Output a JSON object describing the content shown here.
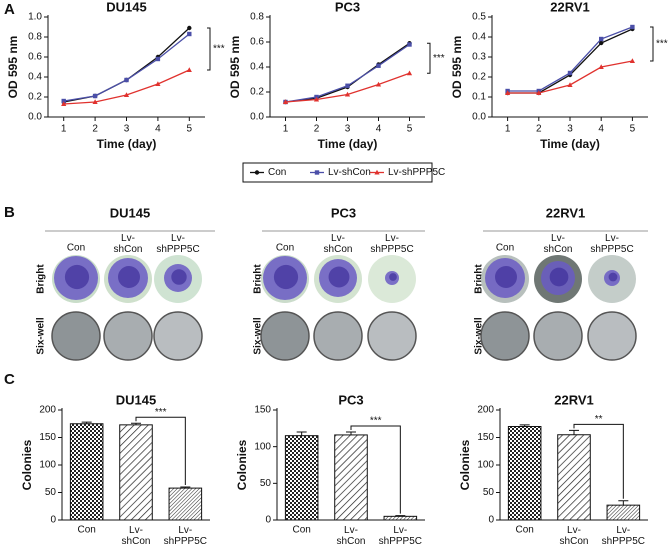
{
  "panel_labels": [
    "A",
    "B",
    "C"
  ],
  "legend_names_from": "chart_data.0.series",
  "chart_data": [
    {
      "type": "line",
      "title": "DU145",
      "xlabel": "Time (day)",
      "ylabel": "OD 595 nm",
      "x": [
        1,
        2,
        3,
        4,
        5
      ],
      "xlim": [
        0.5,
        5.5
      ],
      "xticks": [
        1,
        2,
        3,
        4,
        5
      ],
      "ylim": [
        0,
        1.0
      ],
      "yticks": [
        {
          "value": 0,
          "label": "0.0"
        },
        {
          "value": 0.2,
          "label": "0.2"
        },
        {
          "value": 0.4,
          "label": "0.4"
        },
        {
          "value": 0.6,
          "label": "0.6"
        },
        {
          "value": 0.8,
          "label": "0.8"
        },
        {
          "value": 1.0,
          "label": "1.0"
        }
      ],
      "annotation": "***",
      "series": [
        {
          "name": "Con",
          "color": "#111111",
          "values": [
            0.15,
            0.21,
            0.37,
            0.6,
            0.89
          ]
        },
        {
          "name": "Lv-shCon",
          "color": "#4b4fa8",
          "values": [
            0.16,
            0.21,
            0.37,
            0.58,
            0.83
          ]
        },
        {
          "name": "Lv-shPPP5C",
          "color": "#e0322e",
          "values": [
            0.13,
            0.15,
            0.22,
            0.33,
            0.47
          ]
        }
      ]
    },
    {
      "type": "line",
      "title": "PC3",
      "xlabel": "Time (day)",
      "ylabel": "OD 595 nm",
      "x": [
        1,
        2,
        3,
        4,
        5
      ],
      "xlim": [
        0.5,
        5.5
      ],
      "xticks": [
        1,
        2,
        3,
        4,
        5
      ],
      "ylim": [
        0,
        0.8
      ],
      "yticks": [
        {
          "value": 0,
          "label": "0.0"
        },
        {
          "value": 0.2,
          "label": "0.2"
        },
        {
          "value": 0.4,
          "label": "0.4"
        },
        {
          "value": 0.6,
          "label": "0.6"
        },
        {
          "value": 0.8,
          "label": "0.8"
        }
      ],
      "annotation": "***",
      "series": [
        {
          "name": "Con",
          "color": "#111111",
          "values": [
            0.12,
            0.15,
            0.24,
            0.42,
            0.59
          ]
        },
        {
          "name": "Lv-shCon",
          "color": "#4b4fa8",
          "values": [
            0.12,
            0.16,
            0.25,
            0.41,
            0.58
          ]
        },
        {
          "name": "Lv-shPPP5C",
          "color": "#e0322e",
          "values": [
            0.12,
            0.14,
            0.18,
            0.26,
            0.35
          ]
        }
      ]
    },
    {
      "type": "line",
      "title": "22RV1",
      "xlabel": "Time (day)",
      "ylabel": "OD 595 nm",
      "x": [
        1,
        2,
        3,
        4,
        5
      ],
      "xlim": [
        0.5,
        5.5
      ],
      "xticks": [
        1,
        2,
        3,
        4,
        5
      ],
      "ylim": [
        0,
        0.5
      ],
      "yticks": [
        {
          "value": 0,
          "label": "0.0"
        },
        {
          "value": 0.1,
          "label": "0.1"
        },
        {
          "value": 0.2,
          "label": "0.2"
        },
        {
          "value": 0.3,
          "label": "0.3"
        },
        {
          "value": 0.4,
          "label": "0.4"
        },
        {
          "value": 0.5,
          "label": "0.5"
        }
      ],
      "annotation": "***",
      "series": [
        {
          "name": "Con",
          "color": "#111111",
          "values": [
            0.12,
            0.12,
            0.21,
            0.37,
            0.44
          ]
        },
        {
          "name": "Lv-shCon",
          "color": "#4b4fa8",
          "values": [
            0.13,
            0.13,
            0.22,
            0.39,
            0.45
          ]
        },
        {
          "name": "Lv-shPPP5C",
          "color": "#e0322e",
          "values": [
            0.12,
            0.12,
            0.16,
            0.25,
            0.28
          ]
        }
      ]
    },
    {
      "type": "bar",
      "title": "DU145",
      "ylabel": "Colonies",
      "categories": [
        "Con",
        "Lv-shCon",
        "Lv-shPPP5C"
      ],
      "values": [
        175,
        173,
        58
      ],
      "errors": [
        3,
        3,
        2
      ],
      "ylim": [
        0,
        200
      ],
      "yticks": [
        0,
        50,
        100,
        150,
        200
      ],
      "annotation": "***"
    },
    {
      "type": "bar",
      "title": "PC3",
      "ylabel": "Colonies",
      "categories": [
        "Con",
        "Lv-shCon",
        "Lv-shPPP5C"
      ],
      "values": [
        115,
        116,
        5
      ],
      "errors": [
        5,
        4,
        1
      ],
      "ylim": [
        0,
        150
      ],
      "yticks": [
        0,
        50,
        100,
        150
      ],
      "annotation": "***"
    },
    {
      "type": "bar",
      "title": "22RV1",
      "ylabel": "Colonies",
      "categories": [
        "Con",
        "Lv-shCon",
        "Lv-shPPP5C"
      ],
      "values": [
        170,
        155,
        27
      ],
      "errors": [
        3,
        8,
        8
      ],
      "ylim": [
        0,
        200
      ],
      "yticks": [
        0,
        50,
        100,
        150,
        200
      ],
      "annotation": "**"
    }
  ],
  "colony_assays": [
    {
      "title": "DU145",
      "columns": [
        "Con",
        "Lv-shCon",
        "Lv-shPPP5C"
      ],
      "rows": [
        "Bright",
        "Six-well"
      ]
    },
    {
      "title": "PC3",
      "columns": [
        "Con",
        "Lv-shCon",
        "Lv-shPPP5C"
      ],
      "rows": [
        "Bright",
        "Six-well"
      ]
    },
    {
      "title": "22RV1",
      "columns": [
        "Con",
        "Lv-shCon",
        "Lv-shPPP5C"
      ],
      "rows": [
        "Bright",
        "Six-well"
      ]
    }
  ]
}
